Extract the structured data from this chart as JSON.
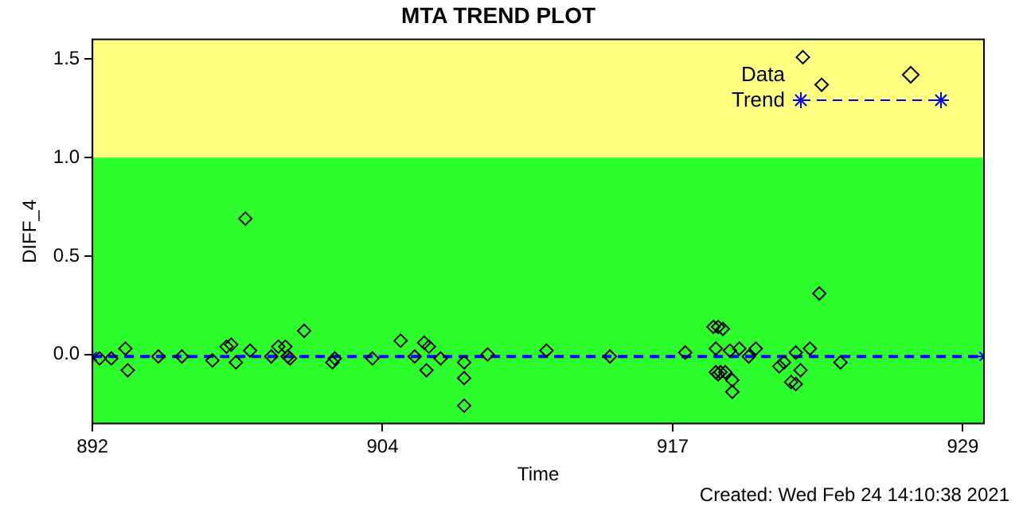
{
  "chart_data": {
    "type": "scatter",
    "title": "MTA TREND PLOT",
    "xlabel": "Time",
    "ylabel": "DIFF_4",
    "annotations": [
      "Created: Wed Feb 24 14:10:38 2021"
    ],
    "xlim": [
      892,
      929.9
    ],
    "xticks": [
      892,
      {
        "value": 904.33,
        "label": "904"
      },
      {
        "value": 916.67,
        "label": "917"
      },
      929
    ],
    "ylim": [
      -0.35,
      1.6
    ],
    "yticks": [
      {
        "value": 0,
        "label": "0.0"
      },
      {
        "value": 0.5,
        "label": "0.5"
      },
      {
        "value": 1,
        "label": "1.0"
      },
      {
        "value": 1.5,
        "label": "1.5"
      }
    ],
    "grid": false,
    "legend": "top right",
    "bands": [
      {
        "axis": "y",
        "from": 1.0,
        "to": 1.6,
        "color": "#ffff80"
      },
      {
        "axis": "y",
        "from": -0.35,
        "to": 1.0,
        "color": "#2dfd2d"
      }
    ],
    "series": [
      {
        "name": "Data",
        "type": "scatter",
        "color": "#000000",
        "marker": "diamond",
        "x": [
          892.3,
          892.8,
          893.4,
          893.5,
          894.8,
          895.8,
          897.1,
          897.7,
          897.9,
          898.1,
          898.5,
          898.7,
          899.6,
          899.9,
          900.2,
          900.3,
          900.4,
          901.0,
          902.2,
          902.3,
          903.9,
          905.1,
          905.7,
          906.1,
          906.3,
          906.2,
          906.8,
          907.8,
          907.8,
          907.8,
          908.8,
          911.3,
          914.0,
          917.2,
          918.4,
          918.6,
          918.8,
          918.5,
          918.7,
          918.9,
          918.6,
          918.5,
          919.1,
          919.5,
          919.9,
          920.2,
          919.2,
          919.2,
          921.2,
          921.4,
          921.9,
          922.1,
          921.7,
          921.9,
          922.5,
          922.9,
          923.8,
          922.2,
          923.0
        ],
        "values": [
          -0.02,
          -0.02,
          0.03,
          -0.08,
          -0.01,
          -0.01,
          -0.03,
          0.04,
          0.05,
          -0.04,
          0.69,
          0.02,
          -0.01,
          0.04,
          0.04,
          -0.01,
          -0.02,
          0.12,
          -0.04,
          -0.02,
          -0.02,
          0.07,
          -0.01,
          0.06,
          0.04,
          -0.08,
          -0.02,
          -0.04,
          -0.12,
          -0.26,
          0.0,
          0.02,
          -0.01,
          0.01,
          0.14,
          0.14,
          0.13,
          -0.09,
          -0.09,
          -0.09,
          -0.1,
          0.03,
          0.02,
          0.03,
          -0.01,
          0.03,
          -0.13,
          -0.19,
          -0.06,
          -0.04,
          0.01,
          -0.08,
          -0.14,
          -0.15,
          0.03,
          0.31,
          -0.04,
          1.51,
          1.37
        ]
      },
      {
        "name": "Trend",
        "type": "line",
        "color": "#0000ff",
        "marker": "cross",
        "line_style": "dashed",
        "x": [
          892,
          929.9
        ],
        "values": [
          -0.01,
          -0.01
        ]
      }
    ]
  }
}
